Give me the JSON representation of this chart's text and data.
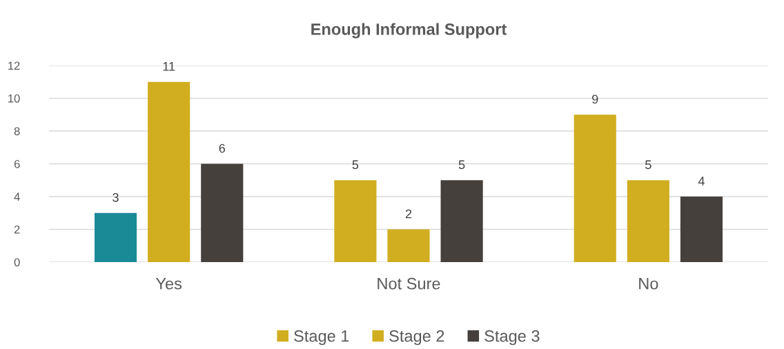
{
  "chart_data": {
    "type": "bar",
    "title": "Enough Informal Support",
    "categories": [
      "Yes",
      "Not Sure",
      "No"
    ],
    "series": [
      {
        "name": "Stage 1",
        "color": "#d1ae20",
        "colors": [
          "#1a8a97",
          "#d1ae20",
          "#d1ae20"
        ],
        "values": [
          3,
          5,
          9
        ]
      },
      {
        "name": "Stage 2",
        "color": "#d1ae20",
        "values": [
          11,
          2,
          5
        ]
      },
      {
        "name": "Stage 3",
        "color": "#45403c",
        "values": [
          6,
          5,
          4
        ]
      }
    ],
    "ylim": [
      0,
      12
    ],
    "yticks": [
      0,
      2,
      4,
      6,
      8,
      10,
      12
    ],
    "grid": "y",
    "legend": "bottom",
    "data_labels": true
  }
}
